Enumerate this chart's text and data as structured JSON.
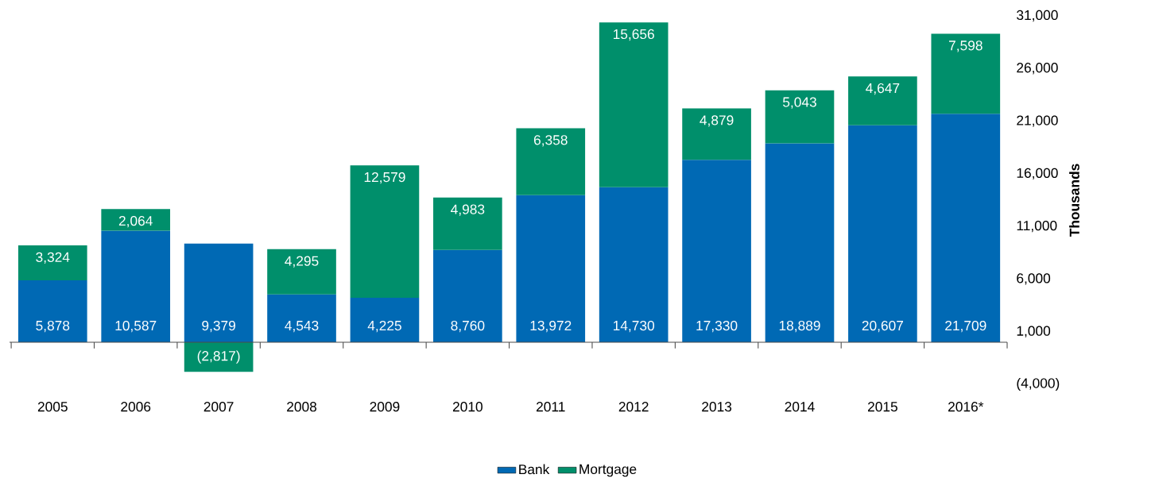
{
  "chart_data": {
    "type": "bar",
    "stacked": true,
    "ylabel": "Thousands",
    "legend": "bottom",
    "categories": [
      "2005",
      "2006",
      "2007",
      "2008",
      "2009",
      "2010",
      "2011",
      "2012",
      "2013",
      "2014",
      "2015",
      "2016*"
    ],
    "series": [
      {
        "name": "Bank",
        "color": "#0069b4",
        "values": [
          5878,
          10587,
          9379,
          4543,
          4225,
          8760,
          13972,
          14730,
          17330,
          18889,
          20607,
          21709
        ],
        "value_labels": [
          "5,878",
          "10,587",
          "9,379",
          "4,543",
          "4,225",
          "8,760",
          "13,972",
          "14,730",
          "17,330",
          "18,889",
          "20,607",
          "21,709"
        ]
      },
      {
        "name": "Mortgage",
        "color": "#008f6b",
        "values": [
          3324,
          2064,
          -2817,
          4295,
          12579,
          4983,
          6358,
          15656,
          4879,
          5043,
          4647,
          7598
        ],
        "value_labels": [
          "3,324",
          "2,064",
          "(2,817)",
          "4,295",
          "12,579",
          "4,983",
          "6,358",
          "15,656",
          "4,879",
          "5,043",
          "4,647",
          "7,598"
        ]
      }
    ],
    "ylim": [
      -4000,
      31000
    ],
    "yticks": [
      {
        "value": -4000,
        "label": "(4,000)"
      },
      {
        "value": 1000,
        "label": "1,000"
      },
      {
        "value": 6000,
        "label": "6,000"
      },
      {
        "value": 11000,
        "label": "11,000"
      },
      {
        "value": 16000,
        "label": "16,000"
      },
      {
        "value": 21000,
        "label": "21,000"
      },
      {
        "value": 26000,
        "label": "26,000"
      },
      {
        "value": 31000,
        "label": "31,000"
      }
    ]
  }
}
